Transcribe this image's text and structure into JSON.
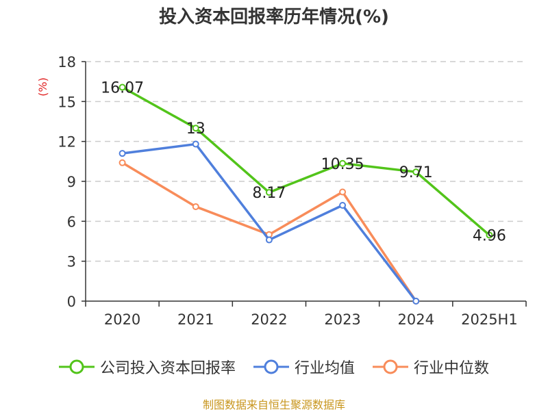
{
  "title": "投入资本回报率历年情况(%)",
  "source": "制图数据来自恒生聚源数据库",
  "colors": {
    "company": "#52c41a",
    "industry_avg": "#4f7fdc",
    "industry_median": "#f88c5a",
    "axis": "#333333",
    "grid": "#cccccc",
    "ylabel": "#e02020"
  },
  "chart_data": {
    "type": "line",
    "title": "投入资本回报率历年情况(%)",
    "xlabel": "",
    "ylabel": "(%)",
    "categories": [
      "2020",
      "2021",
      "2022",
      "2023",
      "2024",
      "2025H1"
    ],
    "ylim": [
      0,
      18
    ],
    "yticks": [
      0,
      3,
      6,
      9,
      12,
      15,
      18
    ],
    "grid": true,
    "legend_position": "bottom",
    "series": [
      {
        "name": "公司投入资本回报率",
        "color_key": "company",
        "values": [
          16.07,
          13,
          8.17,
          10.35,
          9.71,
          4.96
        ],
        "data_labels": [
          "16.07",
          "13",
          "8.17",
          "10.35",
          "9.71",
          "4.96"
        ]
      },
      {
        "name": "行业均值",
        "color_key": "industry_avg",
        "values": [
          11.1,
          11.8,
          4.6,
          7.2,
          0,
          null
        ]
      },
      {
        "name": "行业中位数",
        "color_key": "industry_median",
        "values": [
          10.4,
          7.1,
          5.0,
          8.2,
          0,
          null
        ]
      }
    ]
  }
}
